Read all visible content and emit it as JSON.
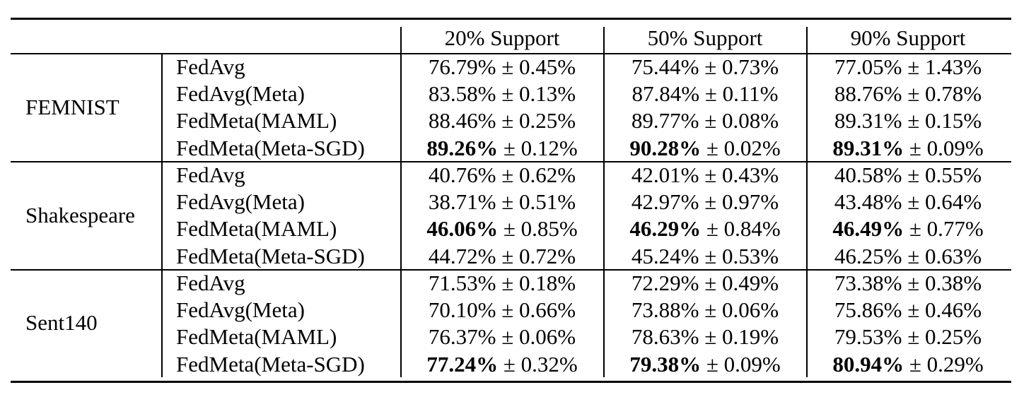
{
  "headers": [
    "20% Support",
    "50% Support",
    "90% Support"
  ],
  "groups": [
    {
      "dataset": "FEMNIST",
      "rows": [
        {
          "method": "FedAvg",
          "cells": [
            {
              "mean": "76.79%",
              "std": "± 0.45%",
              "best": false
            },
            {
              "mean": "75.44%",
              "std": "± 0.73%",
              "best": false
            },
            {
              "mean": "77.05%",
              "std": "± 1.43%",
              "best": false
            }
          ]
        },
        {
          "method": "FedAvg(Meta)",
          "cells": [
            {
              "mean": "83.58%",
              "std": "± 0.13%",
              "best": false
            },
            {
              "mean": "87.84%",
              "std": "± 0.11%",
              "best": false
            },
            {
              "mean": "88.76%",
              "std": "± 0.78%",
              "best": false
            }
          ]
        },
        {
          "method": "FedMeta(MAML)",
          "cells": [
            {
              "mean": "88.46%",
              "std": "± 0.25%",
              "best": false
            },
            {
              "mean": "89.77%",
              "std": "± 0.08%",
              "best": false
            },
            {
              "mean": "89.31%",
              "std": "± 0.15%",
              "best": false
            }
          ]
        },
        {
          "method": "FedMeta(Meta-SGD)",
          "cells": [
            {
              "mean": "89.26%",
              "std": "± 0.12%",
              "best": true
            },
            {
              "mean": "90.28%",
              "std": "± 0.02%",
              "best": true
            },
            {
              "mean": "89.31%",
              "std": "± 0.09%",
              "best": true
            }
          ]
        }
      ]
    },
    {
      "dataset": "Shakespeare",
      "rows": [
        {
          "method": "FedAvg",
          "cells": [
            {
              "mean": "40.76%",
              "std": "± 0.62%",
              "best": false
            },
            {
              "mean": "42.01%",
              "std": "± 0.43%",
              "best": false
            },
            {
              "mean": "40.58%",
              "std": "± 0.55%",
              "best": false
            }
          ]
        },
        {
          "method": "FedAvg(Meta)",
          "cells": [
            {
              "mean": "38.71%",
              "std": "± 0.51%",
              "best": false
            },
            {
              "mean": "42.97%",
              "std": "± 0.97%",
              "best": false
            },
            {
              "mean": "43.48%",
              "std": "± 0.64%",
              "best": false
            }
          ]
        },
        {
          "method": "FedMeta(MAML)",
          "cells": [
            {
              "mean": "46.06%",
              "std": "± 0.85%",
              "best": true
            },
            {
              "mean": "46.29%",
              "std": "± 0.84%",
              "best": true
            },
            {
              "mean": "46.49%",
              "std": "± 0.77%",
              "best": true
            }
          ]
        },
        {
          "method": "FedMeta(Meta-SGD)",
          "cells": [
            {
              "mean": "44.72%",
              "std": "± 0.72%",
              "best": false
            },
            {
              "mean": "45.24%",
              "std": "± 0.53%",
              "best": false
            },
            {
              "mean": "46.25%",
              "std": "± 0.63%",
              "best": false
            }
          ]
        }
      ]
    },
    {
      "dataset": "Sent140",
      "rows": [
        {
          "method": "FedAvg",
          "cells": [
            {
              "mean": "71.53%",
              "std": "± 0.18%",
              "best": false
            },
            {
              "mean": "72.29%",
              "std": "± 0.49%",
              "best": false
            },
            {
              "mean": "73.38%",
              "std": "± 0.38%",
              "best": false
            }
          ]
        },
        {
          "method": "FedAvg(Meta)",
          "cells": [
            {
              "mean": "70.10%",
              "std": "± 0.66%",
              "best": false
            },
            {
              "mean": "73.88%",
              "std": "± 0.06%",
              "best": false
            },
            {
              "mean": "75.86%",
              "std": "± 0.46%",
              "best": false
            }
          ]
        },
        {
          "method": "FedMeta(MAML)",
          "cells": [
            {
              "mean": "76.37%",
              "std": "± 0.06%",
              "best": false
            },
            {
              "mean": "78.63%",
              "std": "± 0.19%",
              "best": false
            },
            {
              "mean": "79.53%",
              "std": "± 0.25%",
              "best": false
            }
          ]
        },
        {
          "method": "FedMeta(Meta-SGD)",
          "cells": [
            {
              "mean": "77.24%",
              "std": "± 0.32%",
              "best": true
            },
            {
              "mean": "79.38%",
              "std": "± 0.09%",
              "best": true
            },
            {
              "mean": "80.94%",
              "std": "± 0.29%",
              "best": true
            }
          ]
        }
      ]
    }
  ]
}
